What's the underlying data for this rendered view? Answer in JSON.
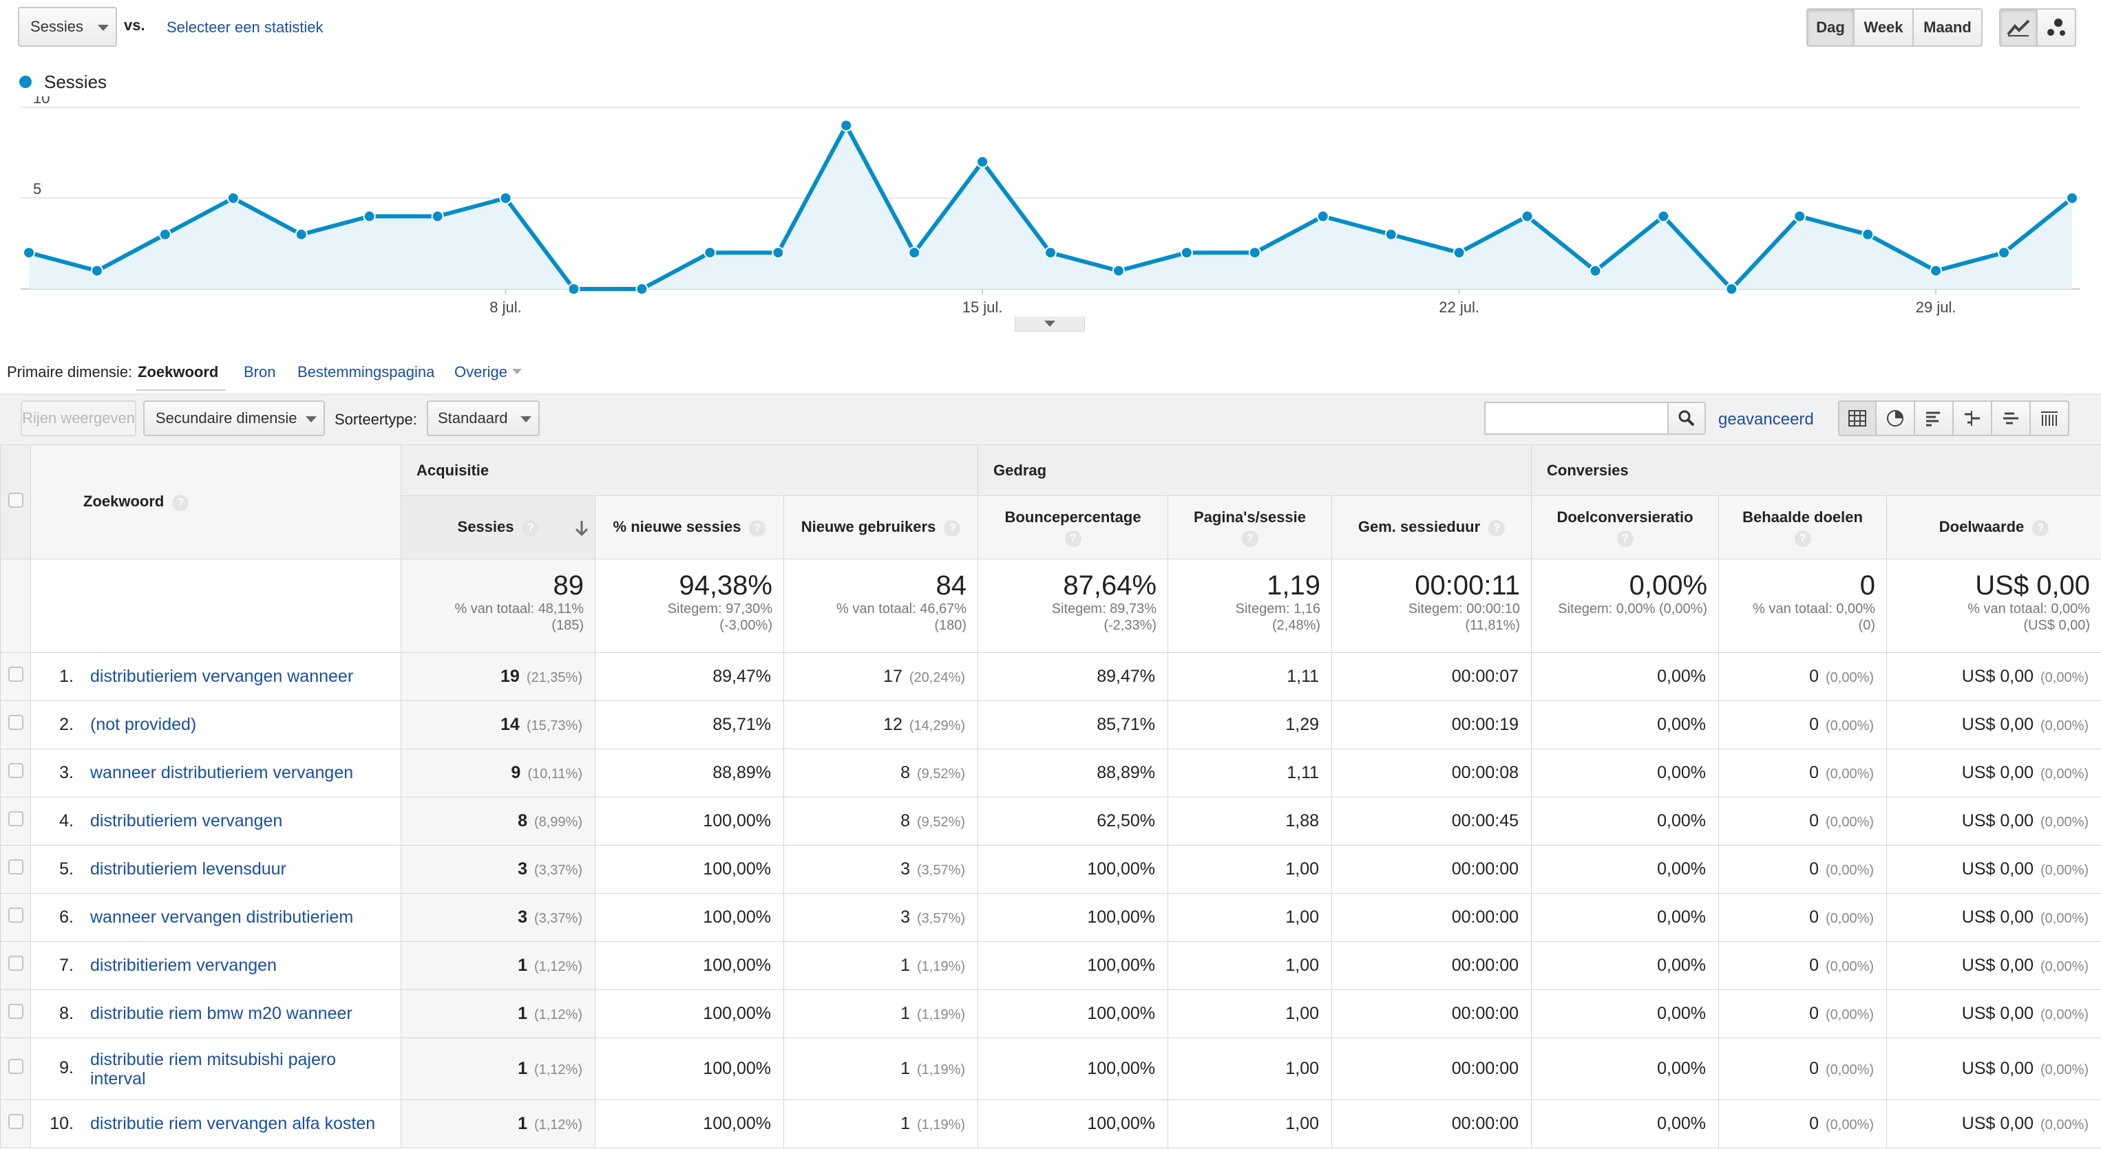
{
  "toolbar": {
    "metric_select": "Sessies",
    "vs_label": "vs.",
    "compare_link": "Selecteer een statistiek",
    "periods": [
      "Dag",
      "Week",
      "Maand"
    ],
    "active_period": "Dag"
  },
  "legend": {
    "series_name": "Sessies",
    "color": "#058dc7"
  },
  "chart_data": {
    "type": "line",
    "series": [
      {
        "name": "Sessies",
        "values": [
          2,
          1,
          3,
          5,
          3,
          4,
          4,
          5,
          0,
          0,
          2,
          2,
          9,
          2,
          7,
          2,
          1,
          2,
          2,
          4,
          3,
          2,
          4,
          1,
          4,
          0,
          4,
          3,
          1,
          2,
          5
        ]
      }
    ],
    "x_tick_labels": [
      "8 jul.",
      "15 jul.",
      "22 jul.",
      "29 jul."
    ],
    "y_tick_labels": [
      "10",
      "5"
    ],
    "ylim": [
      0,
      10
    ],
    "grid": true,
    "fill": true
  },
  "dimension_bar": {
    "label": "Primaire dimensie:",
    "active": "Zoekwoord",
    "options": [
      "Bron",
      "Bestemmingspagina",
      "Overige"
    ]
  },
  "controls": {
    "rows_button": "Rijen weergeven",
    "secondary": "Secundaire dimensie",
    "sort_label": "Sorteertype:",
    "sort_value": "Standaard",
    "search_value": "",
    "advanced": "geavanceerd"
  },
  "table": {
    "dimension_header": "Zoekwoord",
    "groups": [
      "Acquisitie",
      "Gedrag",
      "Conversies"
    ],
    "columns": [
      "Sessies",
      "% nieuwe sessies",
      "Nieuwe gebruikers",
      "Bouncepercentage",
      "Pagina's/sessie",
      "Gem. sessieduur",
      "Doelconversieratio",
      "Behaalde doelen",
      "Doelwaarde"
    ],
    "totals": [
      {
        "big": "89",
        "sub1": "% van totaal: 48,11%",
        "sub2": "(185)"
      },
      {
        "big": "94,38%",
        "sub1": "Sitegem: 97,30%",
        "sub2": "(-3,00%)"
      },
      {
        "big": "84",
        "sub1": "% van totaal: 46,67%",
        "sub2": "(180)"
      },
      {
        "big": "87,64%",
        "sub1": "Sitegem: 89,73%",
        "sub2": "(-2,33%)"
      },
      {
        "big": "1,19",
        "sub1": "Sitegem: 1,16",
        "sub2": "(2,48%)"
      },
      {
        "big": "00:00:11",
        "sub1": "Sitegem: 00:00:10",
        "sub2": "(11,81%)"
      },
      {
        "big": "0,00%",
        "sub1": "Sitegem: 0,00% (0,00%)",
        "sub2": ""
      },
      {
        "big": "0",
        "sub1": "% van totaal: 0,00%",
        "sub2": "(0)"
      },
      {
        "big": "US$ 0,00",
        "sub1": "% van totaal: 0,00%",
        "sub2": "(US$ 0,00)"
      }
    ],
    "rows": [
      {
        "n": "1.",
        "kw": "distributieriem vervangen wanneer",
        "s": "19",
        "sp": "(21,35%)",
        "nw": "89,47%",
        "ng": "17",
        "ngp": "(20,24%)",
        "b": "89,47%",
        "p": "1,11",
        "d": "00:00:07",
        "c": "0,00%",
        "g": "0",
        "gp": "(0,00%)",
        "v": "US$ 0,00",
        "vp": "(0,00%)"
      },
      {
        "n": "2.",
        "kw": "(not provided)",
        "s": "14",
        "sp": "(15,73%)",
        "nw": "85,71%",
        "ng": "12",
        "ngp": "(14,29%)",
        "b": "85,71%",
        "p": "1,29",
        "d": "00:00:19",
        "c": "0,00%",
        "g": "0",
        "gp": "(0,00%)",
        "v": "US$ 0,00",
        "vp": "(0,00%)"
      },
      {
        "n": "3.",
        "kw": "wanneer distributieriem vervangen",
        "s": "9",
        "sp": "(10,11%)",
        "nw": "88,89%",
        "ng": "8",
        "ngp": "(9,52%)",
        "b": "88,89%",
        "p": "1,11",
        "d": "00:00:08",
        "c": "0,00%",
        "g": "0",
        "gp": "(0,00%)",
        "v": "US$ 0,00",
        "vp": "(0,00%)"
      },
      {
        "n": "4.",
        "kw": "distributieriem vervangen",
        "s": "8",
        "sp": "(8,99%)",
        "nw": "100,00%",
        "ng": "8",
        "ngp": "(9,52%)",
        "b": "62,50%",
        "p": "1,88",
        "d": "00:00:45",
        "c": "0,00%",
        "g": "0",
        "gp": "(0,00%)",
        "v": "US$ 0,00",
        "vp": "(0,00%)"
      },
      {
        "n": "5.",
        "kw": "distributieriem levensduur",
        "s": "3",
        "sp": "(3,37%)",
        "nw": "100,00%",
        "ng": "3",
        "ngp": "(3,57%)",
        "b": "100,00%",
        "p": "1,00",
        "d": "00:00:00",
        "c": "0,00%",
        "g": "0",
        "gp": "(0,00%)",
        "v": "US$ 0,00",
        "vp": "(0,00%)"
      },
      {
        "n": "6.",
        "kw": "wanneer vervangen distributieriem",
        "s": "3",
        "sp": "(3,37%)",
        "nw": "100,00%",
        "ng": "3",
        "ngp": "(3,57%)",
        "b": "100,00%",
        "p": "1,00",
        "d": "00:00:00",
        "c": "0,00%",
        "g": "0",
        "gp": "(0,00%)",
        "v": "US$ 0,00",
        "vp": "(0,00%)"
      },
      {
        "n": "7.",
        "kw": "distribitieriem vervangen",
        "s": "1",
        "sp": "(1,12%)",
        "nw": "100,00%",
        "ng": "1",
        "ngp": "(1,19%)",
        "b": "100,00%",
        "p": "1,00",
        "d": "00:00:00",
        "c": "0,00%",
        "g": "0",
        "gp": "(0,00%)",
        "v": "US$ 0,00",
        "vp": "(0,00%)"
      },
      {
        "n": "8.",
        "kw": "distributie riem bmw m20 wanneer",
        "s": "1",
        "sp": "(1,12%)",
        "nw": "100,00%",
        "ng": "1",
        "ngp": "(1,19%)",
        "b": "100,00%",
        "p": "1,00",
        "d": "00:00:00",
        "c": "0,00%",
        "g": "0",
        "gp": "(0,00%)",
        "v": "US$ 0,00",
        "vp": "(0,00%)"
      },
      {
        "n": "9.",
        "kw": "distributie riem mitsubishi pajero interval",
        "s": "1",
        "sp": "(1,12%)",
        "nw": "100,00%",
        "ng": "1",
        "ngp": "(1,19%)",
        "b": "100,00%",
        "p": "1,00",
        "d": "00:00:00",
        "c": "0,00%",
        "g": "0",
        "gp": "(0,00%)",
        "v": "US$ 0,00",
        "vp": "(0,00%)"
      },
      {
        "n": "10.",
        "kw": "distributie riem vervangen alfa kosten",
        "s": "1",
        "sp": "(1,12%)",
        "nw": "100,00%",
        "ng": "1",
        "ngp": "(1,19%)",
        "b": "100,00%",
        "p": "1,00",
        "d": "00:00:00",
        "c": "0,00%",
        "g": "0",
        "gp": "(0,00%)",
        "v": "US$ 0,00",
        "vp": "(0,00%)"
      }
    ]
  }
}
